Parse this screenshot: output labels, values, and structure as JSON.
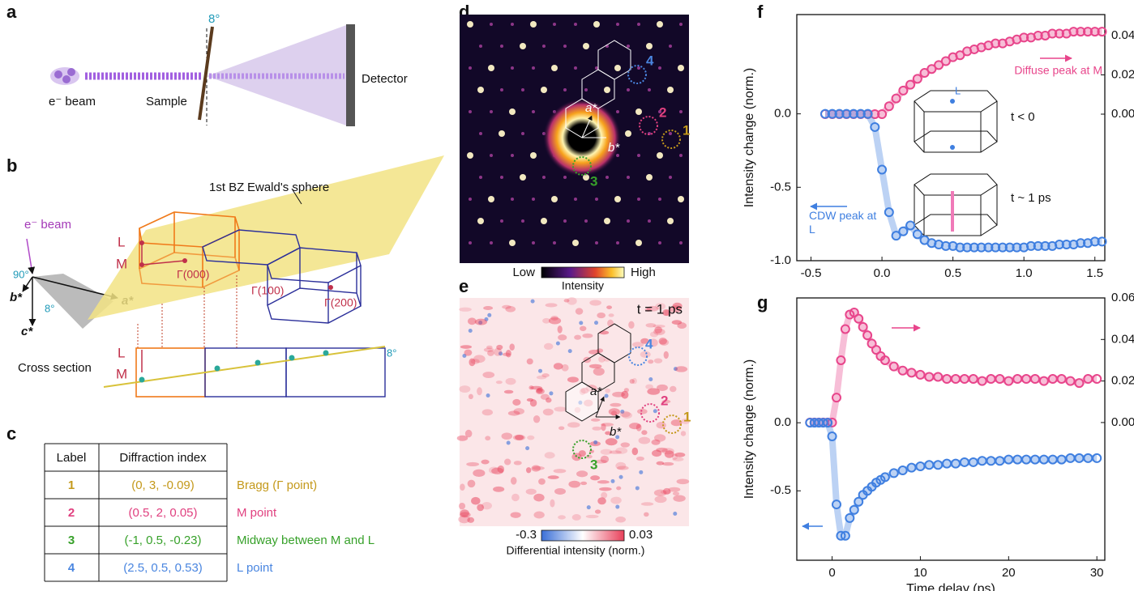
{
  "panel_labels": [
    "a",
    "b",
    "c",
    "d",
    "e",
    "f",
    "g"
  ],
  "panel_a": {
    "beam_label": "e⁻ beam",
    "sample_label": "Sample",
    "angle": "8°",
    "detector_label": "Detector"
  },
  "panel_b": {
    "beam_label": "e⁻ beam",
    "right_angle": "90°",
    "axis_a": "a*",
    "axis_b": "b*",
    "axis_c": "c*",
    "tilt": "8°",
    "bz_label": "1st BZ",
    "ewald_label": "Ewald's sphere",
    "L": "L",
    "M": "M",
    "gamma_000": "Γ(000)",
    "gamma_100": "Γ(100)",
    "gamma_200": "Γ(200)",
    "cross_L": "L",
    "cross_M": "M",
    "cross_section": "Cross section",
    "cross_tilt": "8°"
  },
  "panel_c": {
    "header": [
      "Label",
      "Diffraction index"
    ],
    "rows": [
      [
        "1",
        "(0, 3, -0.09)",
        "Bragg (Γ point)"
      ],
      [
        "2",
        "(0.5, 2, 0.05)",
        "M point"
      ],
      [
        "3",
        "(-1, 0.5, -0.23)",
        "Midway between M and L"
      ],
      [
        "4",
        "(2.5, 0.5, 0.53)",
        "L point"
      ]
    ]
  },
  "panel_d": {
    "markers": [
      "4",
      "2",
      "1",
      "3"
    ],
    "axis_a": "a*",
    "axis_b": "b*",
    "colorbar_low": "Low",
    "colorbar_high": "High",
    "colorbar_label": "Intensity"
  },
  "panel_e": {
    "time": "t = 1 ps",
    "markers": [
      "4",
      "2",
      "1",
      "3"
    ],
    "axis_a": "a*",
    "axis_b": "b*",
    "colorbar_ticks": [
      -0.3,
      0.03
    ],
    "colorbar_label": "Differential intensity (norm.)"
  },
  "chart_data": [
    {
      "type": "scatter",
      "y_label": "Intensity change (norm.)",
      "x": [
        -0.4,
        -0.35,
        -0.3,
        -0.25,
        -0.2,
        -0.15,
        -0.1,
        -0.05,
        0,
        0.05,
        0.1,
        0.15,
        0.2,
        0.25,
        0.3,
        0.35,
        0.4,
        0.45,
        0.5,
        0.55,
        0.6,
        0.65,
        0.7,
        0.75,
        0.8,
        0.85,
        0.9,
        0.95,
        1.0,
        1.05,
        1.1,
        1.15,
        1.2,
        1.25,
        1.3,
        1.35,
        1.4,
        1.45,
        1.5,
        1.55
      ],
      "series": [
        {
          "name": "Diffuse peak at M",
          "color": "#e8458b",
          "axis": "y2",
          "values": [
            0,
            0,
            0,
            0,
            0,
            0,
            0,
            0,
            0,
            0.004,
            0.008,
            0.012,
            0.015,
            0.018,
            0.021,
            0.023,
            0.025,
            0.027,
            0.029,
            0.03,
            0.032,
            0.033,
            0.034,
            0.035,
            0.036,
            0.036,
            0.037,
            0.038,
            0.039,
            0.039,
            0.04,
            0.04,
            0.041,
            0.041,
            0.041,
            0.042,
            0.042,
            0.042,
            0.042,
            0.042
          ]
        },
        {
          "name": "CDW peak at L",
          "color": "#3f7fe0",
          "values": [
            0,
            0,
            0,
            0,
            0,
            0,
            0,
            -0.09,
            -0.38,
            -0.67,
            -0.83,
            -0.8,
            -0.76,
            -0.82,
            -0.86,
            -0.88,
            -0.89,
            -0.9,
            -0.9,
            -0.91,
            -0.91,
            -0.91,
            -0.91,
            -0.91,
            -0.91,
            -0.91,
            -0.91,
            -0.91,
            -0.91,
            -0.9,
            -0.9,
            -0.9,
            -0.9,
            -0.89,
            -0.89,
            -0.89,
            -0.88,
            -0.88,
            -0.87,
            -0.87
          ]
        }
      ],
      "xlim": [
        -0.6,
        1.57
      ],
      "xticks": [
        -0.5,
        {
          "value": 0,
          "label": "0.0"
        },
        0.5,
        {
          "value": 1,
          "label": "1.0"
        },
        1.5
      ],
      "ylim": [
        -1.0,
        0.676
      ],
      "yticks": [
        {
          "value": 0,
          "label": "0.0"
        },
        -0.5,
        {
          "value": -1,
          "label": "-1.0"
        }
      ],
      "y2lim": [
        -0.0746,
        0.0507
      ],
      "y2ticks": [
        {
          "value": 0,
          "label": "0.00"
        },
        {
          "value": 0.02,
          "label": "0.02"
        },
        {
          "value": 0.04,
          "label": "0.04"
        }
      ],
      "annotations": [
        "L",
        "t < 0",
        "t ~ 1 ps"
      ]
    },
    {
      "type": "scatter",
      "y_label": "Intensity change (norm.)",
      "x_label": "Time delay (ps)",
      "x": [
        -2.5,
        -2,
        -1.5,
        -1,
        -0.5,
        0,
        0.5,
        1,
        1.5,
        2,
        2.5,
        3,
        3.5,
        4,
        4.5,
        5,
        5.5,
        6,
        7,
        8,
        9,
        10,
        11,
        12,
        13,
        14,
        15,
        16,
        17,
        18,
        19,
        20,
        21,
        22,
        23,
        24,
        25,
        26,
        27,
        28,
        29,
        30
      ],
      "series": [
        {
          "color": "#e8458b",
          "axis": "y2",
          "values": [
            0,
            0,
            0,
            0,
            0,
            0,
            0.012,
            0.03,
            0.045,
            0.052,
            0.053,
            0.05,
            0.046,
            0.042,
            0.038,
            0.035,
            0.032,
            0.03,
            0.027,
            0.025,
            0.024,
            0.023,
            0.022,
            0.022,
            0.021,
            0.021,
            0.021,
            0.021,
            0.02,
            0.021,
            0.021,
            0.02,
            0.021,
            0.021,
            0.021,
            0.02,
            0.021,
            0.021,
            0.02,
            0.019,
            0.021,
            0.021
          ]
        },
        {
          "color": "#3f7fe0",
          "values": [
            0,
            0,
            0,
            0,
            0,
            -0.1,
            -0.6,
            -0.83,
            -0.83,
            -0.7,
            -0.64,
            -0.58,
            -0.53,
            -0.5,
            -0.47,
            -0.44,
            -0.42,
            -0.4,
            -0.37,
            -0.35,
            -0.33,
            -0.32,
            -0.31,
            -0.31,
            -0.3,
            -0.3,
            -0.29,
            -0.29,
            -0.28,
            -0.28,
            -0.28,
            -0.27,
            -0.27,
            -0.27,
            -0.27,
            -0.27,
            -0.27,
            -0.27,
            -0.26,
            -0.26,
            -0.26,
            -0.26
          ]
        }
      ],
      "xlim": [
        -4,
        30.9
      ],
      "xticks": [
        0,
        10,
        20,
        30
      ],
      "ylim": [
        -1.01,
        0.917
      ],
      "yticks": [
        {
          "value": 0,
          "label": "0.0"
        },
        -0.5
      ],
      "y2lim": [
        -0.0663,
        0.06
      ],
      "y2ticks": [
        {
          "value": 0,
          "label": "0.00"
        },
        {
          "value": 0.02,
          "label": "0.02"
        },
        {
          "value": 0.04,
          "label": "0.04"
        },
        {
          "value": 0.06,
          "label": "0.06"
        }
      ]
    }
  ]
}
